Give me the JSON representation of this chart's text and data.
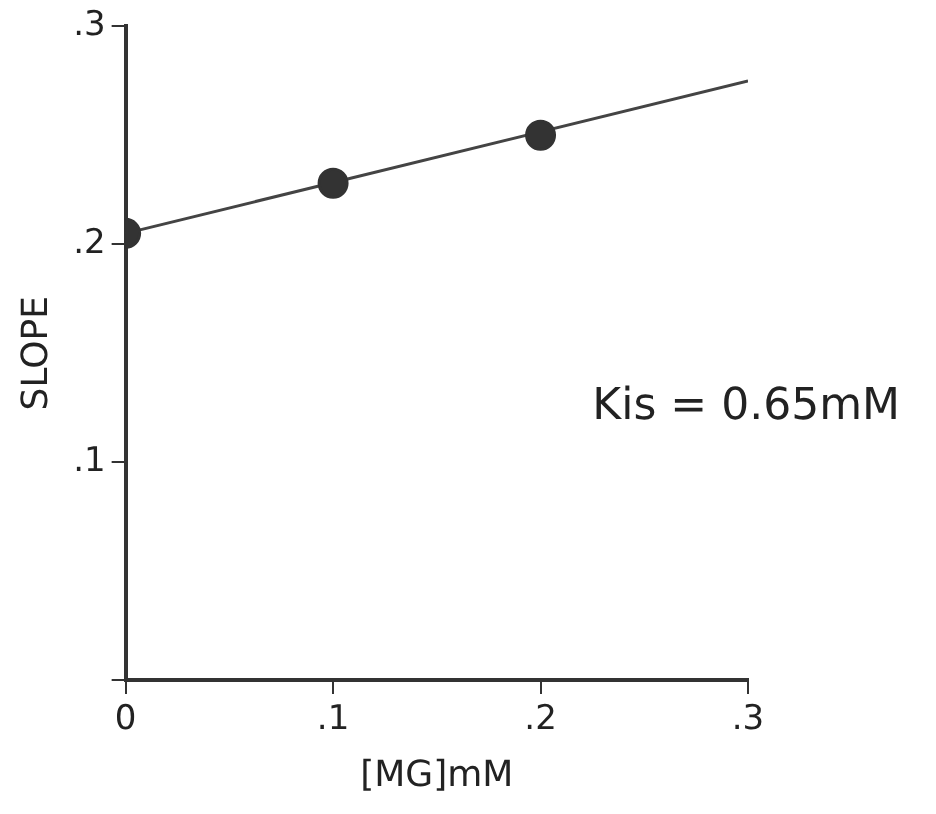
{
  "chart_data": {
    "type": "scatter",
    "xlabel": "[MG]mM",
    "ylabel": "SLOPE",
    "x": [
      0,
      0.1,
      0.2
    ],
    "series": [
      {
        "color": "#333333",
        "values": [
          0.205,
          0.228,
          0.25
        ],
        "marker": "circle"
      },
      {
        "type": "line",
        "color": "#444444",
        "x": [
          0,
          0.3
        ],
        "values": [
          0.205,
          0.275
        ],
        "marker": "none"
      }
    ],
    "xlim": [
      0,
      0.3
    ],
    "ylim": [
      0,
      0.3
    ],
    "xticks": [
      0,
      {
        "value": 0.1,
        "label": ".1"
      },
      {
        "value": 0.2,
        "label": ".2"
      },
      {
        "value": 0.3,
        "label": ".3"
      }
    ],
    "yticks": [
      {
        "value": 0,
        "label": null
      },
      {
        "value": 0.1,
        "label": ".1"
      },
      {
        "value": 0.2,
        "label": ".2"
      },
      {
        "value": 0.3,
        "label": ".3"
      }
    ],
    "grid": false,
    "legend": false,
    "annotations": [
      "Kis = 0.65mM"
    ]
  }
}
